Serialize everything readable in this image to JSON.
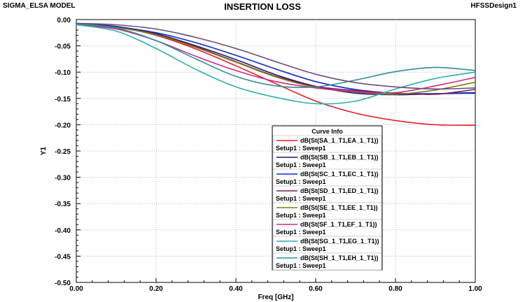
{
  "header": {
    "model_label": "SIGMA_ELSA MODEL",
    "title": "INSERTION LOSS",
    "design_label": "HFSSDesign1"
  },
  "legend": {
    "title": "Curve Info",
    "placement": "center-right"
  },
  "chart_data": {
    "type": "line",
    "title": "INSERTION LOSS",
    "xlabel": "Freq [GHz]",
    "ylabel": "Y1",
    "xlim": [
      0,
      1
    ],
    "ylim": [
      -0.5,
      0
    ],
    "x_ticks": [
      "0.00",
      "0.20",
      "0.40",
      "0.60",
      "0.80",
      "1.00"
    ],
    "y_ticks": [
      "0.00",
      "-0.05",
      "-0.10",
      "-0.15",
      "-0.20",
      "-0.25",
      "-0.30",
      "-0.35",
      "-0.40",
      "-0.45",
      "-0.50"
    ],
    "grid": true,
    "x": [
      0.0,
      0.1,
      0.2,
      0.3,
      0.4,
      0.5,
      0.6,
      0.7,
      0.8,
      0.9,
      1.0
    ],
    "series": [
      {
        "name": "dB(St(SA_1_T1,EA_1_T1))",
        "sub": "Setup1 : Sweep1",
        "color": "#e8202a",
        "values": [
          -0.008,
          -0.014,
          -0.03,
          -0.056,
          -0.088,
          -0.122,
          -0.155,
          -0.178,
          -0.192,
          -0.2,
          -0.201
        ]
      },
      {
        "name": "dB(St(SB_1_T1,EB_1_T1))",
        "sub": "Setup1 : Sweep1",
        "color": "#1a1a6e",
        "values": [
          -0.008,
          -0.013,
          -0.027,
          -0.05,
          -0.076,
          -0.105,
          -0.127,
          -0.14,
          -0.143,
          -0.141,
          -0.139
        ]
      },
      {
        "name": "dB(St(SC_1_T1,EC_1_T1))",
        "sub": "Setup1 : Sweep1",
        "color": "#0a2ec8",
        "values": [
          -0.01,
          -0.014,
          -0.025,
          -0.044,
          -0.068,
          -0.094,
          -0.118,
          -0.133,
          -0.14,
          -0.141,
          -0.14
        ]
      },
      {
        "name": "dB(St(SD_1_T1,ED_1_T1))",
        "sub": "Setup1 : Sweep1",
        "color": "#7a1a5e",
        "values": [
          -0.01,
          -0.015,
          -0.028,
          -0.052,
          -0.08,
          -0.108,
          -0.127,
          -0.135,
          -0.14,
          -0.142,
          -0.133
        ]
      },
      {
        "name": "dB(St(SE_1_T1,EE_1_T1))",
        "sub": "Setup1 : Sweep1",
        "color": "#7d7a10",
        "values": [
          -0.01,
          -0.015,
          -0.029,
          -0.053,
          -0.081,
          -0.109,
          -0.129,
          -0.138,
          -0.142,
          -0.134,
          -0.119
        ]
      },
      {
        "name": "dB(St(SF_1_T1,EF_1_T1))",
        "sub": "Setup1 : Sweep1",
        "color": "#cc2a8a",
        "values": [
          -0.01,
          -0.018,
          -0.04,
          -0.07,
          -0.097,
          -0.118,
          -0.13,
          -0.137,
          -0.139,
          -0.126,
          -0.11
        ]
      },
      {
        "name": "dB(St(SG_1_T1,EG_1_T1))",
        "sub": "Setup1 : Sweep1",
        "color": "#2cb0b0",
        "values": [
          -0.01,
          -0.022,
          -0.055,
          -0.095,
          -0.128,
          -0.148,
          -0.16,
          -0.155,
          -0.132,
          -0.112,
          -0.1
        ]
      },
      {
        "name": "dB(St(SH_1_T1,EH_1_T1))",
        "sub": "Setup1 : Sweep1",
        "color": "#2e8c9c",
        "values": [
          -0.008,
          -0.016,
          -0.04,
          -0.075,
          -0.108,
          -0.126,
          -0.128,
          -0.115,
          -0.099,
          -0.091,
          -0.097
        ]
      },
      {
        "name": "",
        "sub": "",
        "color": "#6b4a7a",
        "values": [
          -0.007,
          -0.01,
          -0.018,
          -0.034,
          -0.055,
          -0.08,
          -0.104,
          -0.12,
          -0.128,
          -0.132,
          -0.13
        ]
      }
    ]
  }
}
